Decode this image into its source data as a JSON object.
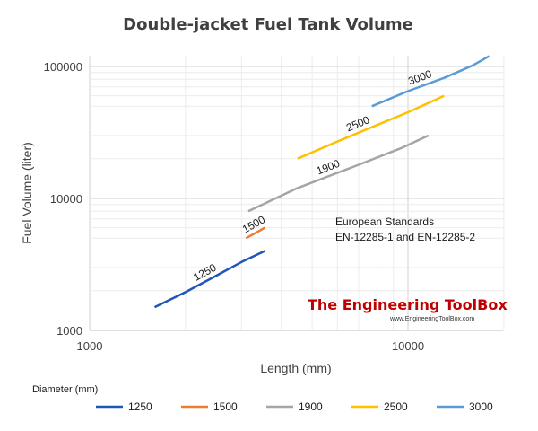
{
  "chart_data": {
    "type": "line",
    "title": "Double-jacket Fuel Tank Volume",
    "xlabel": "Length (mm)",
    "ylabel": "Fuel Volume (liter)",
    "xscale": "log",
    "yscale": "log",
    "xlim": [
      1000,
      20000
    ],
    "ylim": [
      1000,
      120000
    ],
    "x_ticks": [
      1000,
      10000
    ],
    "x_tick_labels": [
      "1000",
      "10000"
    ],
    "y_ticks": [
      1000,
      10000,
      100000
    ],
    "y_tick_labels": [
      "1000",
      "10000",
      "100000"
    ],
    "grid": true,
    "legend_title": "Diameter (mm)",
    "legend_position": "bottom",
    "series": [
      {
        "name": "1250",
        "color": "#2056b8",
        "x": [
          1600,
          2000,
          2500,
          3000,
          3550
        ],
        "y": [
          1500,
          1950,
          2600,
          3300,
          4000
        ]
      },
      {
        "name": "1500",
        "color": "#ed7d31",
        "x": [
          3100,
          3550
        ],
        "y": [
          5000,
          6000
        ]
      },
      {
        "name": "1900",
        "color": "#a5a5a5",
        "x": [
          3150,
          4500,
          7000,
          9500,
          11600
        ],
        "y": [
          8000,
          12000,
          18000,
          24000,
          30000
        ]
      },
      {
        "name": "2500",
        "color": "#ffc000",
        "x": [
          4500,
          6000,
          8000,
          10000,
          13000
        ],
        "y": [
          20000,
          27000,
          36000,
          45000,
          60000
        ]
      },
      {
        "name": "3000",
        "color": "#5b9bd5",
        "x": [
          7700,
          10000,
          13000,
          16000,
          18000
        ],
        "y": [
          50000,
          65000,
          82000,
          102000,
          120000
        ]
      }
    ],
    "annotations": [
      "European Standards",
      "EN-12285-1 and EN-12285-2"
    ]
  },
  "branding": {
    "name": "The Engineering ToolBox",
    "url": "www.EngineeringToolBox.com"
  }
}
